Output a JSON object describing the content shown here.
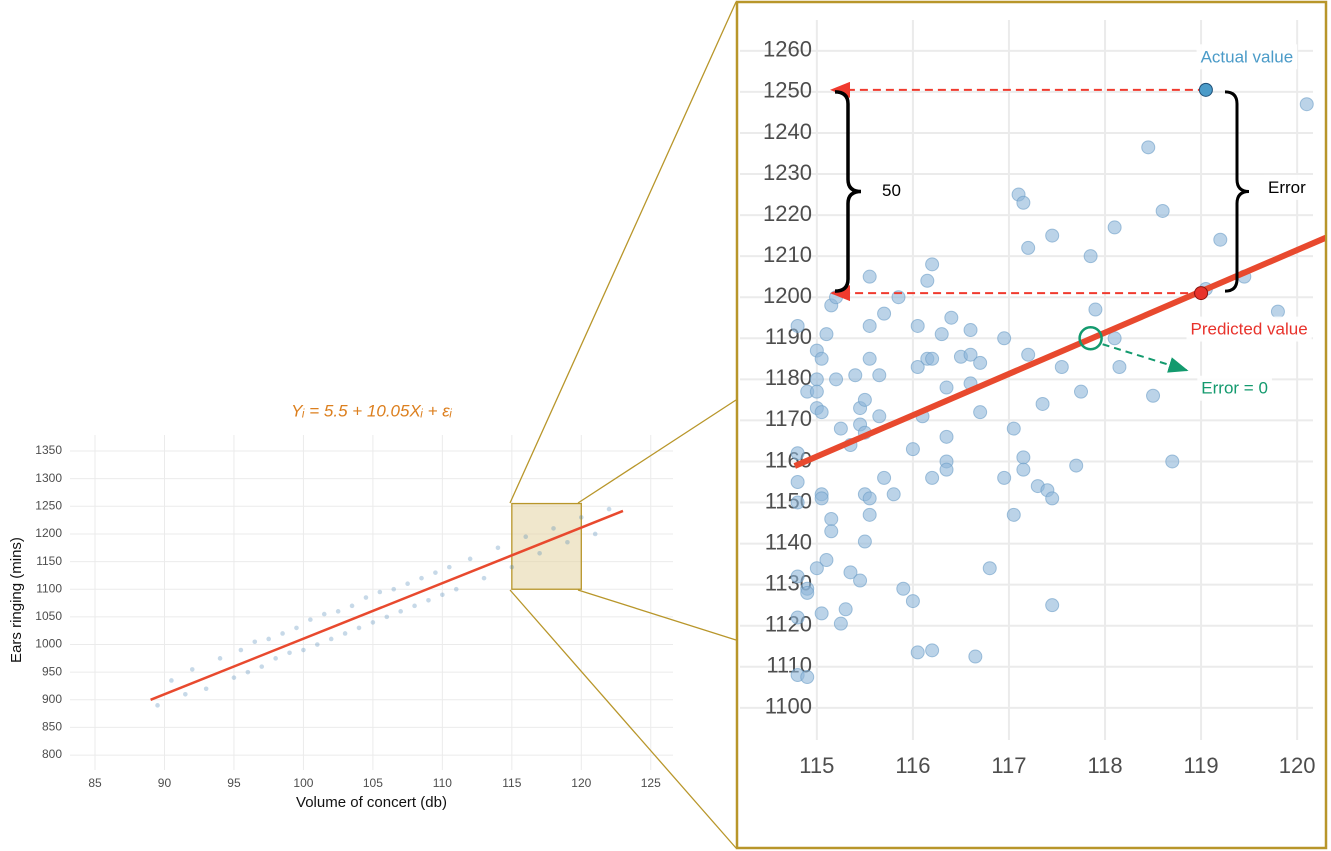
{
  "chart_data": [
    {
      "type": "scatter",
      "title": "Yᵢ = 5.5 + 10.05Xᵢ + εᵢ",
      "x_label": "Volume of concert (db)",
      "y_label": "Ears ringing (mins)",
      "xlim": [
        83.2,
        126.6
      ],
      "ylim": [
        773,
        1379
      ],
      "xticks": [
        85,
        90,
        95,
        100,
        105,
        110,
        115,
        120,
        125
      ],
      "yticks": [
        800,
        850,
        900,
        950,
        1000,
        1050,
        1100,
        1150,
        1200,
        1250,
        1300,
        1350
      ],
      "grid": true,
      "color": "#4682b4",
      "x": [
        89.5,
        90.5,
        91.5,
        92,
        93,
        94,
        95,
        95.5,
        96,
        96.5,
        97,
        97.5,
        98,
        98.5,
        99,
        99.5,
        100,
        100.5,
        101,
        101.5,
        102,
        102.5,
        103,
        103.5,
        104,
        104.5,
        105,
        105.5,
        106,
        106.5,
        107,
        107.5,
        108,
        108.5,
        109,
        109.5,
        110,
        110.5,
        111,
        112,
        113,
        114,
        115,
        116,
        117,
        118,
        119,
        120,
        121,
        122
      ],
      "values": [
        890,
        935,
        910,
        955,
        920,
        975,
        940,
        990,
        950,
        1005,
        960,
        1010,
        975,
        1020,
        985,
        1030,
        990,
        1045,
        1000,
        1055,
        1010,
        1060,
        1020,
        1070,
        1030,
        1085,
        1040,
        1095,
        1050,
        1100,
        1060,
        1110,
        1070,
        1120,
        1080,
        1130,
        1090,
        1140,
        1100,
        1155,
        1120,
        1175,
        1140,
        1195,
        1165,
        1210,
        1185,
        1230,
        1200,
        1245
      ],
      "fit": {
        "x": [
          89,
          123
        ],
        "values": [
          900,
          1241.65
        ],
        "color": "#e8492e"
      },
      "highlight": {
        "xlim": [
          115,
          120
        ],
        "ylim": [
          1100,
          1255
        ],
        "color": "#b8962a"
      }
    },
    {
      "type": "scatter",
      "xlim": [
        114.2,
        120.29
      ],
      "ylim": [
        1066.6,
        1271.4
      ],
      "xticks": [
        115,
        116,
        117,
        118,
        119,
        120
      ],
      "yticks": [
        1100,
        1110,
        1120,
        1130,
        1140,
        1150,
        1160,
        1170,
        1180,
        1190,
        1200,
        1210,
        1220,
        1230,
        1240,
        1250,
        1260
      ],
      "grid": true,
      "color": "#8db6d8",
      "x": [
        114.8,
        114.8,
        114.8,
        114.8,
        114.8,
        114.9,
        114.9,
        114.8,
        114.8,
        114.9,
        114.9,
        115.0,
        115.05,
        115.0,
        115.0,
        115.0,
        115.05,
        115.1,
        115.15,
        115.2,
        115.2,
        115.05,
        115.05,
        115.15,
        115.15,
        115.0,
        115.1,
        115.05,
        115.25,
        115.3,
        115.35,
        115.45,
        115.25,
        115.35,
        115.4,
        115.45,
        115.45,
        115.5,
        115.5,
        115.5,
        115.55,
        115.55,
        115.5,
        115.55,
        115.55,
        115.55,
        115.65,
        115.65,
        115.7,
        115.7,
        115.8,
        115.85,
        115.9,
        116.0,
        116.0,
        116.05,
        116.05,
        116.1,
        116.05,
        116.2,
        116.15,
        116.2,
        116.15,
        116.2,
        116.2,
        116.3,
        116.35,
        116.35,
        116.35,
        116.35,
        116.4,
        116.5,
        116.6,
        116.6,
        116.6,
        116.7,
        116.7,
        116.65,
        116.8,
        116.95,
        116.95,
        117.05,
        117.05,
        117.1,
        117.15,
        117.15,
        117.15,
        117.2,
        117.2,
        117.3,
        117.35,
        117.4,
        117.45,
        117.45,
        117.45,
        117.55,
        117.7,
        117.75,
        117.85,
        117.9,
        118.1,
        118.1,
        118.15,
        118.45,
        118.5,
        118.6,
        118.7,
        119.05,
        119.2,
        119.45,
        119.8,
        120.1
      ],
      "values": [
        1193,
        1162,
        1155,
        1150,
        1132,
        1129,
        1128,
        1122,
        1108,
        1107.5,
        1177,
        1187,
        1185,
        1180,
        1177,
        1173,
        1172,
        1191,
        1198,
        1200,
        1180,
        1152,
        1151,
        1146,
        1143,
        1134,
        1136,
        1123,
        1120.5,
        1124,
        1133,
        1131,
        1168,
        1164,
        1181,
        1173,
        1169,
        1175,
        1167,
        1152,
        1151,
        1147,
        1140.5,
        1185,
        1193,
        1205,
        1181,
        1171,
        1196,
        1156,
        1152,
        1200,
        1129,
        1126,
        1163,
        1183,
        1193,
        1171,
        1113.5,
        1114,
        1185,
        1185,
        1204,
        1208,
        1156,
        1191,
        1178,
        1166,
        1160,
        1158,
        1195,
        1185.5,
        1186,
        1192,
        1179,
        1184,
        1172,
        1112.5,
        1134,
        1190,
        1156,
        1147,
        1168,
        1225,
        1223,
        1161,
        1158,
        1186,
        1212,
        1154,
        1174,
        1153,
        1151,
        1215,
        1125,
        1183,
        1159,
        1177,
        1210,
        1197,
        1190,
        1217,
        1183,
        1236.5,
        1176,
        1221,
        1160,
        1202,
        1214,
        1205,
        1196.5,
        1247
      ],
      "fit": {
        "x": [
          114.77,
          120.3
        ],
        "values": [
          1158.9,
          1214.5
        ],
        "color": "#e8492e"
      },
      "annotations": {
        "actual": {
          "text": "Actual value",
          "x": 119.05,
          "y": 1250.5,
          "color": "#4b9bc8"
        },
        "predicted": {
          "text": "Predicted value",
          "x": 119.0,
          "y": 1201,
          "color": "#e8322b"
        },
        "error": {
          "text": "Error"
        },
        "difference": {
          "text": "50"
        },
        "zero_error": {
          "text": "Error = 0",
          "x": 117.85,
          "y": 1190,
          "color": "#139a6e"
        }
      }
    }
  ]
}
